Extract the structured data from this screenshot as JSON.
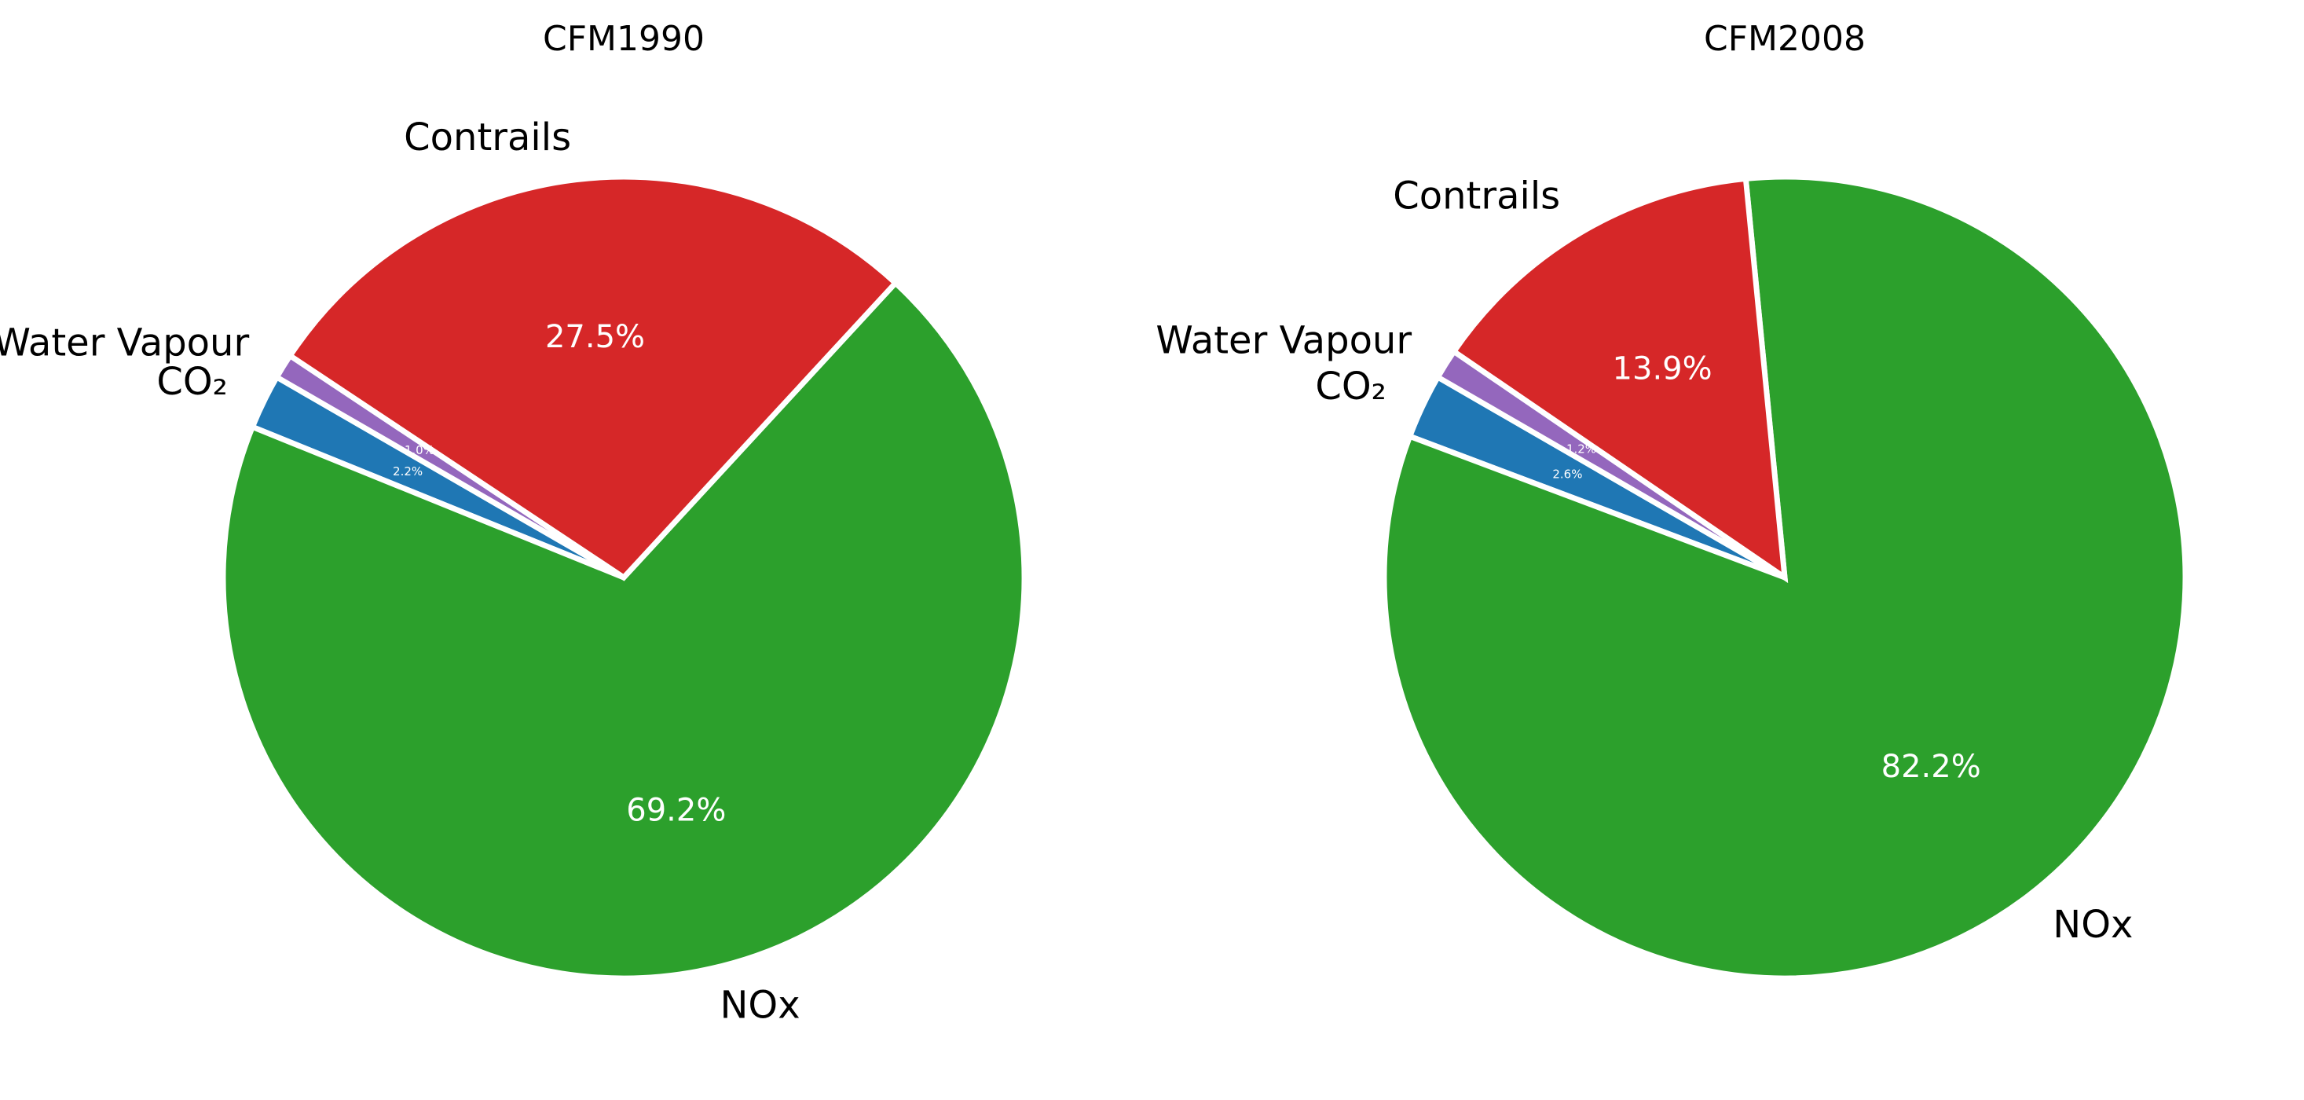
{
  "chart_data": [
    {
      "type": "pie",
      "title": "CFM1990",
      "categories": [
        "CO₂",
        "NOx",
        "Contrails",
        "Water Vapour"
      ],
      "values": [
        2.2,
        69.2,
        27.5,
        1.0
      ],
      "value_labels": [
        "2.2%",
        "69.2%",
        "27.5%",
        "1.0%"
      ],
      "colors": [
        "#1f77b4",
        "#2ca02c",
        "#d62728",
        "#9467bd"
      ],
      "start_angle_deg": 150,
      "direction": "counterclockwise"
    },
    {
      "type": "pie",
      "title": "CFM2008",
      "categories": [
        "CO₂",
        "NOx",
        "Contrails",
        "Water Vapour"
      ],
      "values": [
        2.6,
        82.2,
        13.9,
        1.2
      ],
      "value_labels": [
        "2.6%",
        "82.2%",
        "13.9%",
        "1.2%"
      ],
      "colors": [
        "#1f77b4",
        "#2ca02c",
        "#d62728",
        "#9467bd"
      ],
      "start_angle_deg": 150,
      "direction": "counterclockwise"
    }
  ]
}
